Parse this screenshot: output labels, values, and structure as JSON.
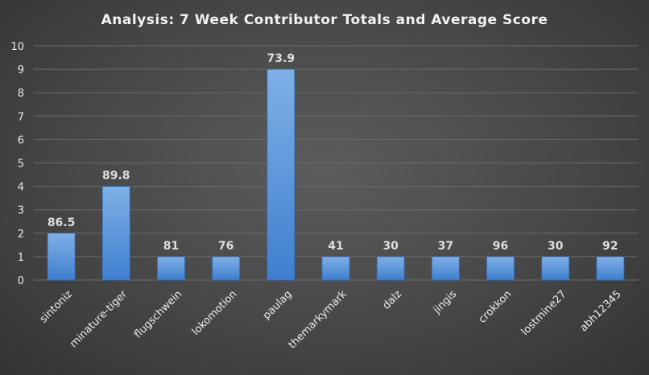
{
  "chart_data": {
    "type": "bar",
    "title": "Analysis:  7 Week Contributor Totals and Average Score",
    "xlabel": "",
    "ylabel": "",
    "ylim": [
      0,
      10
    ],
    "yticks": [
      0,
      1,
      2,
      3,
      4,
      5,
      6,
      7,
      8,
      9,
      10
    ],
    "grid": true,
    "legend": "none",
    "categories": [
      "sintoniz",
      "minature-tiger",
      "flugschwein",
      "lokomotion",
      "paulag",
      "themarkymark",
      "dalz",
      "jingis",
      "crokkon",
      "lostmine27",
      "abh12345"
    ],
    "values": [
      2,
      4,
      1,
      1,
      9,
      1,
      1,
      1,
      1,
      1,
      1
    ],
    "data_labels": [
      "86.5",
      "89.8",
      "81",
      "76",
      "73.9",
      "41",
      "30",
      "37",
      "96",
      "30",
      "92"
    ],
    "colors": {
      "bar_top": "#7fb0e6",
      "bar_bottom": "#3f7fcf"
    }
  }
}
